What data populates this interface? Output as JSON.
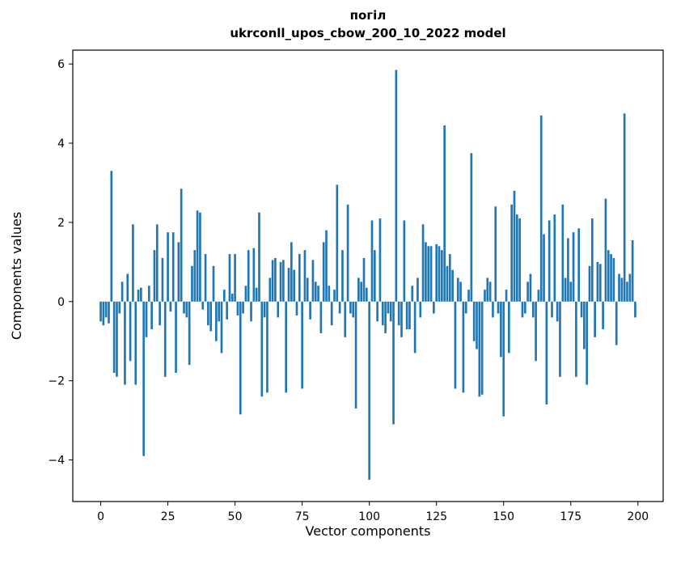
{
  "chart_data": {
    "type": "bar",
    "title": "погіл",
    "subtitle": "ukrconll_upos_cbow_200_10_2022 model",
    "xlabel": "Vector components",
    "ylabel": "Components values",
    "bar_color": "#1f77b4",
    "x_start": 0,
    "n_components": 200,
    "xticks": [
      0,
      25,
      50,
      75,
      100,
      125,
      150,
      175,
      200
    ],
    "yticks": [
      6,
      4,
      2,
      0,
      -2,
      -4
    ],
    "xlim": [
      -10.4,
      209.4
    ],
    "ylim": [
      -5.05,
      6.35
    ],
    "grid": false,
    "legend": "none",
    "values": [
      -0.5,
      -0.6,
      -0.4,
      -0.55,
      3.3,
      -1.8,
      -1.9,
      -0.3,
      0.5,
      -2.1,
      0.7,
      -1.5,
      1.95,
      -2.1,
      0.3,
      0.35,
      -3.9,
      -0.9,
      0.4,
      -0.7,
      1.3,
      1.95,
      -0.6,
      1.1,
      -1.9,
      1.75,
      -0.25,
      1.75,
      -1.8,
      1.5,
      2.85,
      -0.3,
      -0.4,
      -1.6,
      0.9,
      1.3,
      2.3,
      2.25,
      -0.2,
      1.2,
      -0.6,
      -0.75,
      0.9,
      -1.0,
      -0.5,
      -1.3,
      0.3,
      -0.45,
      1.2,
      0.2,
      1.2,
      -0.35,
      -2.85,
      -0.3,
      0.4,
      1.3,
      -0.5,
      1.35,
      0.35,
      2.25,
      -2.4,
      -0.4,
      -2.3,
      0.6,
      1.05,
      1.1,
      -0.4,
      1.0,
      1.05,
      -2.3,
      0.85,
      1.5,
      0.8,
      -0.35,
      1.2,
      -2.2,
      1.3,
      0.6,
      -0.45,
      1.05,
      0.5,
      0.4,
      -0.8,
      1.5,
      1.8,
      0.4,
      -0.6,
      0.3,
      2.95,
      -0.3,
      1.3,
      -0.9,
      2.45,
      -0.3,
      -0.4,
      -2.7,
      0.6,
      0.5,
      1.1,
      0.35,
      -4.5,
      2.05,
      1.3,
      -0.5,
      2.1,
      -0.6,
      -0.8,
      -0.3,
      -0.5,
      -3.1,
      5.85,
      -0.6,
      -0.9,
      2.05,
      -0.7,
      -0.7,
      0.4,
      -1.3,
      0.6,
      -0.4,
      1.95,
      1.5,
      1.4,
      1.4,
      -0.3,
      1.45,
      1.4,
      1.3,
      4.45,
      0.9,
      1.2,
      0.8,
      -2.2,
      0.6,
      0.5,
      -2.3,
      -0.3,
      0.3,
      3.75,
      -1.0,
      -1.2,
      -2.4,
      -2.35,
      0.3,
      0.6,
      0.5,
      -0.4,
      2.4,
      -0.3,
      -1.4,
      -2.9,
      0.3,
      -1.3,
      2.45,
      2.8,
      2.2,
      2.1,
      -0.4,
      -0.3,
      0.5,
      0.7,
      -0.4,
      -1.5,
      0.3,
      4.7,
      1.7,
      -2.6,
      2.05,
      -0.4,
      2.2,
      -0.5,
      -1.9,
      2.45,
      0.6,
      1.6,
      0.5,
      1.75,
      -1.9,
      1.85,
      -0.4,
      -1.2,
      -2.1,
      0.9,
      2.1,
      -0.9,
      1.0,
      0.95,
      -0.7,
      2.6,
      1.3,
      1.2,
      1.1,
      -1.1,
      0.7,
      0.6,
      4.75,
      0.5,
      0.7,
      1.55,
      -0.4
    ]
  }
}
